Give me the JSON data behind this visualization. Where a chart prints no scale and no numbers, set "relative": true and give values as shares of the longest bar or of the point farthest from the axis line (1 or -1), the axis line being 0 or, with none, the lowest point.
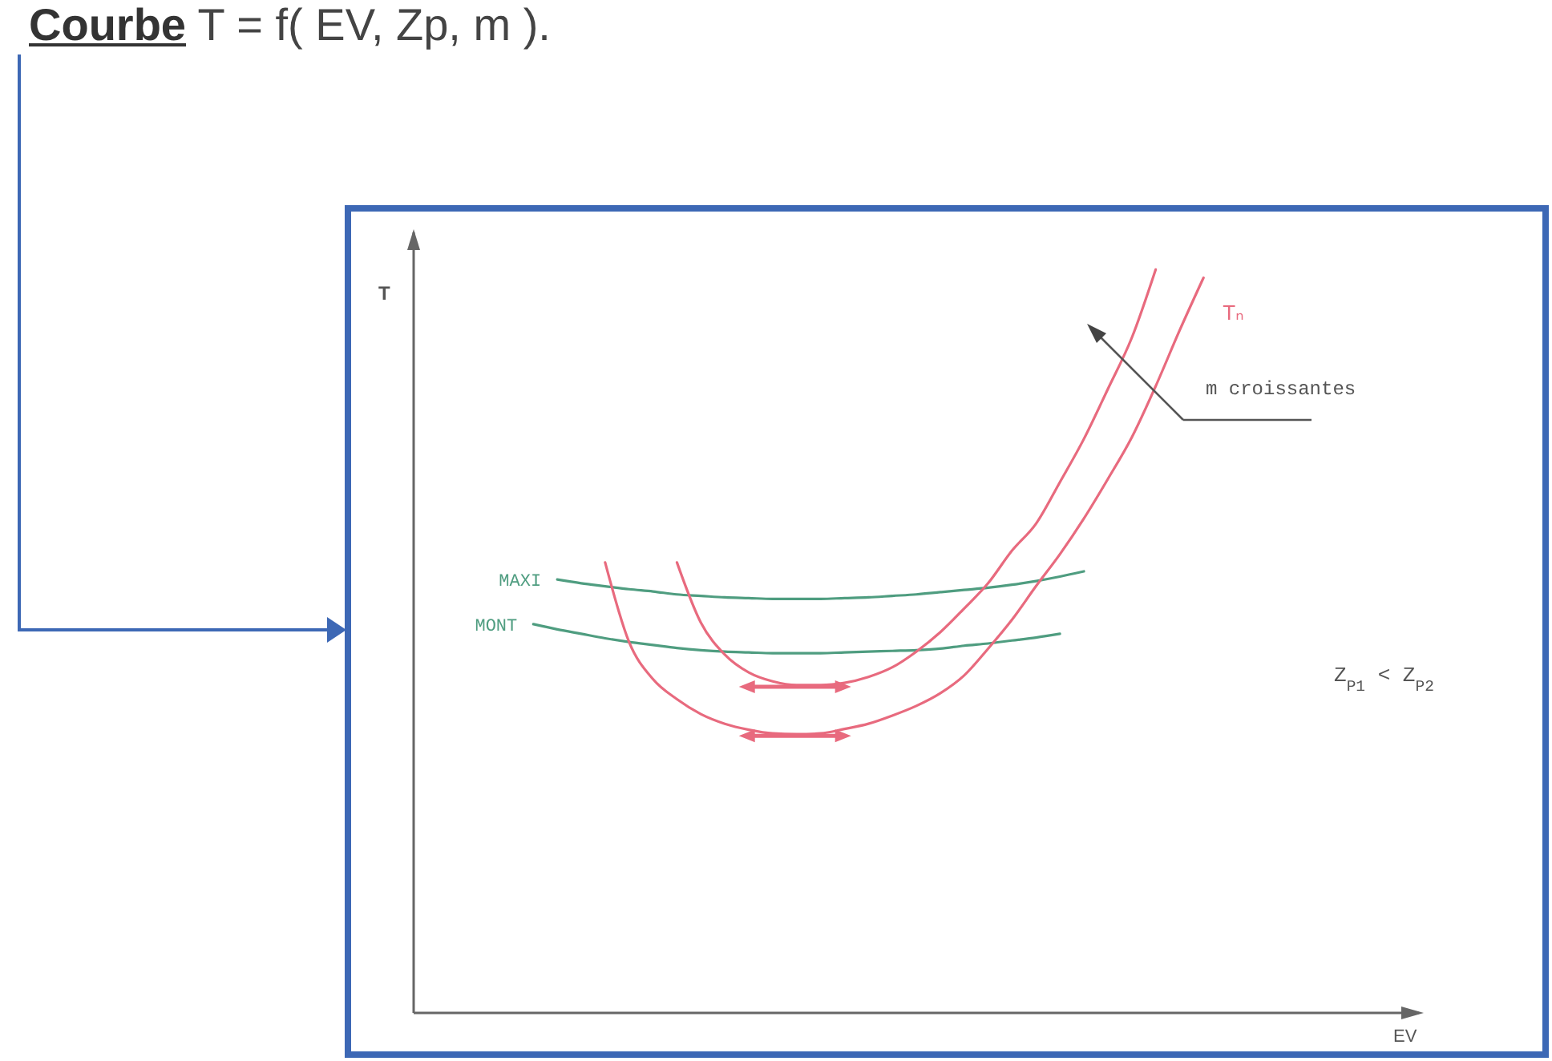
{
  "chart_data": {
    "type": "line",
    "title": "Courbe T = f( EV, Zp, m ).",
    "xlabel": "EV",
    "ylabel": "T",
    "relative": true,
    "categories": [
      null,
      null,
      null,
      null,
      null,
      null,
      null,
      null,
      null,
      null,
      null,
      null,
      null,
      null,
      null,
      null,
      null,
      null,
      null,
      null,
      null,
      null,
      null,
      null,
      null,
      null,
      null,
      null,
      null,
      null,
      null,
      null,
      null,
      null,
      null,
      null,
      null,
      null,
      null,
      null,
      null,
      null,
      null
    ],
    "series": [
      {
        "name": "MAXI",
        "color": "#4f9d80",
        "values": [
          null,
          null,
          null,
          null,
          null,
          null,
          0.583,
          0.578,
          0.574,
          0.57,
          0.567,
          0.563,
          0.561,
          0.559,
          0.558,
          0.557,
          0.557,
          0.557,
          0.558,
          0.559,
          0.561,
          0.563,
          0.566,
          0.569,
          0.572,
          0.576,
          0.581,
          0.587,
          0.594,
          null,
          null,
          null,
          null,
          null,
          null,
          null,
          null,
          null,
          null,
          null,
          null,
          null,
          null
        ]
      },
      {
        "name": "MONT",
        "color": "#4f9d80",
        "values": [
          null,
          null,
          null,
          null,
          null,
          0.523,
          0.516,
          0.51,
          0.504,
          0.499,
          0.495,
          0.491,
          0.488,
          0.486,
          0.485,
          0.484,
          0.484,
          0.484,
          0.485,
          0.486,
          0.487,
          0.488,
          0.49,
          0.494,
          0.497,
          0.501,
          0.505,
          0.51,
          null,
          null,
          null,
          null,
          null,
          null,
          null,
          null,
          null,
          null,
          null,
          null,
          null,
          null,
          null
        ]
      },
      {
        "color": "#e86a7e",
        "values": [
          null,
          null,
          null,
          null,
          null,
          null,
          null,
          null,
          null,
          null,
          null,
          0.606,
          0.525,
          0.482,
          0.458,
          0.446,
          0.441,
          0.441,
          0.444,
          0.452,
          0.465,
          0.486,
          0.512,
          0.544,
          0.578,
          0.622,
          0.658,
          0.714,
          0.772,
          0.839,
          0.908,
          1,
          null,
          null,
          null,
          null,
          null,
          null,
          null,
          null,
          null,
          null,
          null
        ]
      },
      {
        "name": "Tₙ",
        "color": "#e86a7e",
        "values": [
          null,
          null,
          null,
          null,
          null,
          null,
          null,
          null,
          0.606,
          0.499,
          0.449,
          0.422,
          0.402,
          0.389,
          0.381,
          0.376,
          0.375,
          0.376,
          0.382,
          0.389,
          0.4,
          0.413,
          0.43,
          0.454,
          0.49,
          0.529,
          0.574,
          0.617,
          0.665,
          0.718,
          0.774,
          0.843,
          0.918,
          0.989,
          null,
          null,
          null,
          null,
          null,
          null,
          null,
          null,
          null
        ]
      }
    ],
    "annotations": [
      "m croissantes",
      "Z$_{P1}$ < Z$_{P2}$"
    ]
  }
}
